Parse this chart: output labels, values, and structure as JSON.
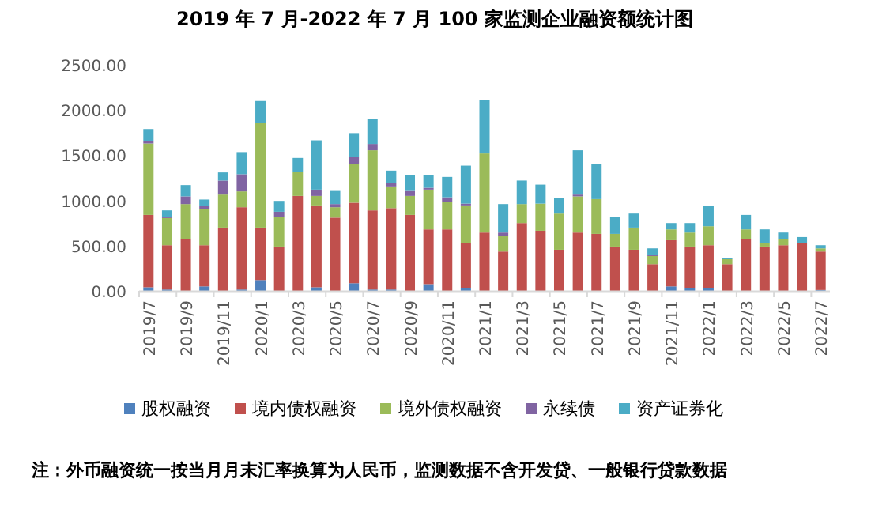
{
  "chart_data": {
    "type": "bar",
    "stacked": true,
    "title": "2019 年 7 月-2022 年 7 月 100 家监测企业融资额统计图",
    "categories": [
      "2019/7",
      null,
      "2019/9",
      null,
      "2019/11",
      null,
      "2020/1",
      null,
      "2020/3",
      null,
      "2020/5",
      null,
      "2020/7",
      null,
      "2020/9",
      null,
      "2020/11",
      null,
      "2021/1",
      null,
      "2021/3",
      null,
      "2021/5",
      null,
      "2021/7",
      null,
      "2021/9",
      null,
      "2021/11",
      null,
      "2022/1",
      null,
      "2022/3",
      null,
      "2022/5",
      null,
      "2022/7"
    ],
    "series": [
      {
        "name": "股权融资",
        "color": "#4f81bd",
        "values": [
          40,
          15,
          0,
          50,
          0,
          15,
          120,
          0,
          0,
          40,
          0,
          85,
          15,
          15,
          0,
          75,
          0,
          35,
          0,
          0,
          0,
          0,
          0,
          0,
          0,
          0,
          0,
          0,
          50,
          35,
          35,
          0,
          0,
          0,
          0,
          0,
          10
        ]
      },
      {
        "name": "境内债权融资",
        "color": "#c0504d",
        "values": [
          800,
          490,
          575,
          455,
          700,
          910,
          580,
          490,
          1050,
          905,
          810,
          890,
          875,
          900,
          840,
          605,
          680,
          490,
          645,
          435,
          750,
          665,
          455,
          645,
          630,
          490,
          455,
          295,
          510,
          455,
          470,
          295,
          575,
          490,
          505,
          525,
          425
        ]
      },
      {
        "name": "境外债权融资",
        "color": "#9bbb59",
        "values": [
          790,
          300,
          385,
          400,
          365,
          175,
          1155,
          330,
          265,
          105,
          115,
          425,
          665,
          240,
          210,
          440,
          300,
          420,
          875,
          175,
          210,
          300,
          400,
          400,
          385,
          140,
          245,
          90,
          120,
          155,
          210,
          55,
          105,
          35,
          70,
          0,
          35
        ]
      },
      {
        "name": "永续债",
        "color": "#8064a2",
        "values": [
          25,
          15,
          85,
          35,
          155,
          190,
          0,
          55,
          0,
          70,
          35,
          80,
          70,
          35,
          55,
          20,
          55,
          20,
          0,
          35,
          0,
          0,
          0,
          20,
          0,
          0,
          0,
          15,
          0,
          0,
          0,
          0,
          0,
          0,
          0,
          0,
          0
        ]
      },
      {
        "name": "资产证券化",
        "color": "#4bacc6",
        "values": [
          135,
          70,
          125,
          70,
          90,
          245,
          245,
          120,
          155,
          545,
          145,
          265,
          280,
          140,
          175,
          140,
          225,
          420,
          595,
          315,
          260,
          210,
          175,
          490,
          385,
          190,
          155,
          70,
          70,
          105,
          225,
          15,
          160,
          155,
          70,
          70,
          35
        ]
      }
    ],
    "ylim": [
      0,
      2500
    ],
    "yticks": [
      {
        "value": 0,
        "label": "0.00"
      },
      {
        "value": 500,
        "label": "500.00"
      },
      {
        "value": 1000,
        "label": "1000.00"
      },
      {
        "value": 1500,
        "label": "1500.00"
      },
      {
        "value": 2000,
        "label": "2000.00"
      },
      {
        "value": 2500,
        "label": "2500.00"
      }
    ],
    "legend": "bottom",
    "annotations": [
      "注：外币融资统一按当月月末汇率换算为人民币，监测数据不含开发贷、一般银行贷款数据"
    ]
  }
}
